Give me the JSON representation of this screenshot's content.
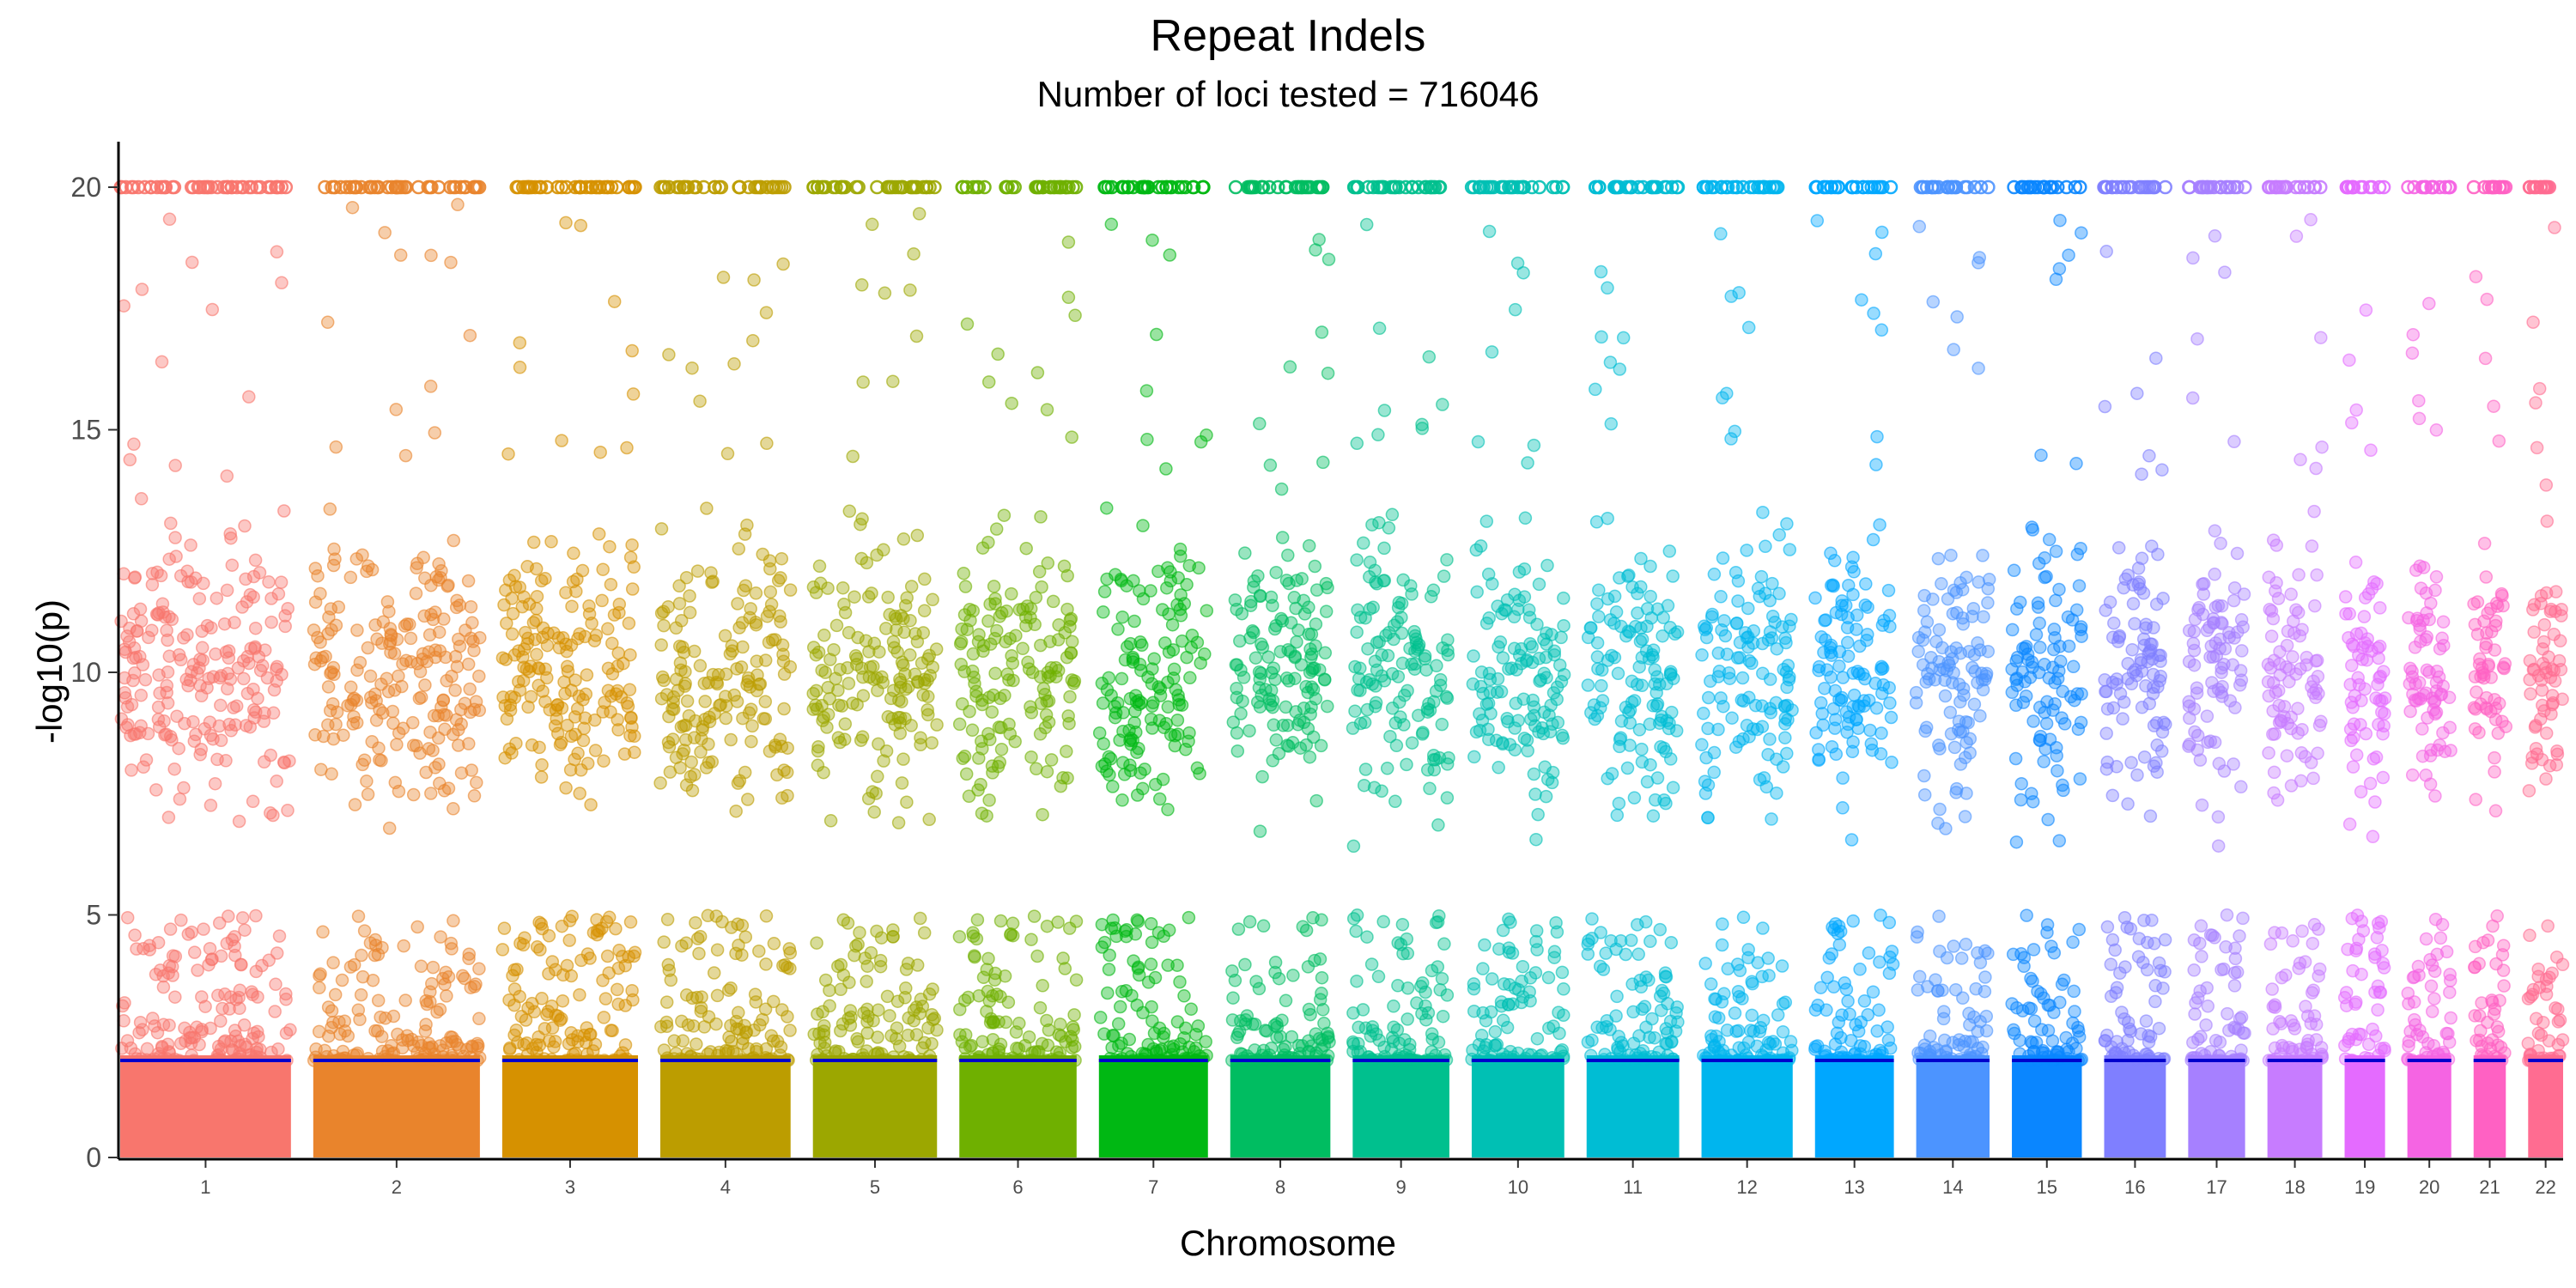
{
  "chart_data": {
    "type": "scatter",
    "title": "Repeat Indels",
    "subtitle": "Number of loci tested = 716046",
    "xlabel": "Chromosome",
    "ylabel": "-log10(p)",
    "ylim": [
      0,
      21
    ],
    "yticks": [
      0,
      5,
      10,
      15,
      20
    ],
    "threshold": 2,
    "threshold_color": "#0000cc",
    "grid": false,
    "legend": "none",
    "point_cap": 20,
    "chromosomes": [
      {
        "label": "1",
        "color": "#F8766D",
        "size": 249
      },
      {
        "label": "2",
        "color": "#E9842C",
        "size": 243
      },
      {
        "label": "3",
        "color": "#D69100",
        "size": 198
      },
      {
        "label": "4",
        "color": "#BC9D00",
        "size": 190
      },
      {
        "label": "5",
        "color": "#9CA700",
        "size": 181
      },
      {
        "label": "6",
        "color": "#6FB000",
        "size": 171
      },
      {
        "label": "7",
        "color": "#00B813",
        "size": 159
      },
      {
        "label": "8",
        "color": "#00BD61",
        "size": 146
      },
      {
        "label": "9",
        "color": "#00C08E",
        "size": 141
      },
      {
        "label": "10",
        "color": "#00C0B4",
        "size": 135
      },
      {
        "label": "11",
        "color": "#00BDD4",
        "size": 135
      },
      {
        "label": "12",
        "color": "#00B5EE",
        "size": 133
      },
      {
        "label": "13",
        "color": "#00A7FF",
        "size": 115
      },
      {
        "label": "14",
        "color": "#4C94FF",
        "size": 107
      },
      {
        "label": "15",
        "color": "#0A86FF",
        "size": 102
      },
      {
        "label": "16",
        "color": "#7F7FFF",
        "size": 90
      },
      {
        "label": "17",
        "color": "#A680FF",
        "size": 83
      },
      {
        "label": "18",
        "color": "#C77CFF",
        "size": 80
      },
      {
        "label": "19",
        "color": "#E46BFF",
        "size": 59
      },
      {
        "label": "20",
        "color": "#F564E3",
        "size": 64
      },
      {
        "label": "21",
        "color": "#FF61C3",
        "size": 47
      },
      {
        "label": "22",
        "color": "#FF6C91",
        "size": 51
      }
    ]
  }
}
